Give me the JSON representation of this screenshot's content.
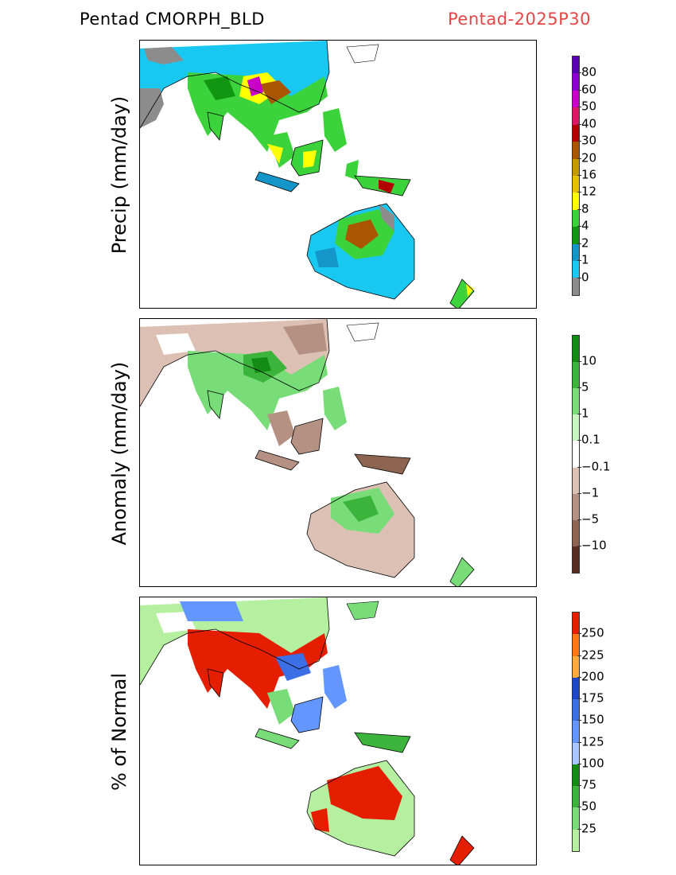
{
  "header": {
    "product": "Pentad CMORPH_BLD",
    "period": "Pentad-2025P30"
  },
  "panels": [
    {
      "id": "precip",
      "ylabel": "Precip (mm/day)",
      "colorbar": {
        "colors": [
          "#8c8c8c",
          "#19c8f0",
          "#1496c8",
          "#119611",
          "#3cd23c",
          "#ffff00",
          "#e6c300",
          "#c39b00",
          "#aa5500",
          "#b40000",
          "#dc1464",
          "#c800c8",
          "#8c00d2",
          "#5a00b4"
        ],
        "labels": [
          "0",
          "1",
          "2",
          "4",
          "8",
          "12",
          "16",
          "20",
          "30",
          "40",
          "50",
          "60",
          "80"
        ]
      }
    },
    {
      "id": "anomaly",
      "ylabel": "Anomaly (mm/day)",
      "colorbar": {
        "colors": [
          "#5a2d23",
          "#8c6450",
          "#b49183",
          "#dcc0b4",
          "#ffffff",
          "#c8f5c0",
          "#78dc78",
          "#3cb43c",
          "#148c14"
        ],
        "labels": [
          "−10",
          "−5",
          "−1",
          "−0.1",
          "0.1",
          "1",
          "5",
          "10"
        ]
      }
    },
    {
      "id": "percent",
      "ylabel": "% of Normal",
      "colorbar": {
        "colors": [
          "#b4f0a0",
          "#78dc78",
          "#3cb43c",
          "#148c14",
          "#aac8ff",
          "#6496ff",
          "#3c6ee6",
          "#1e46c8",
          "#ffaa3c",
          "#ff7814",
          "#e61e00"
        ],
        "labels": [
          "25",
          "50",
          "75",
          "100",
          "125",
          "150",
          "175",
          "200",
          "225",
          "250"
        ]
      }
    }
  ]
}
